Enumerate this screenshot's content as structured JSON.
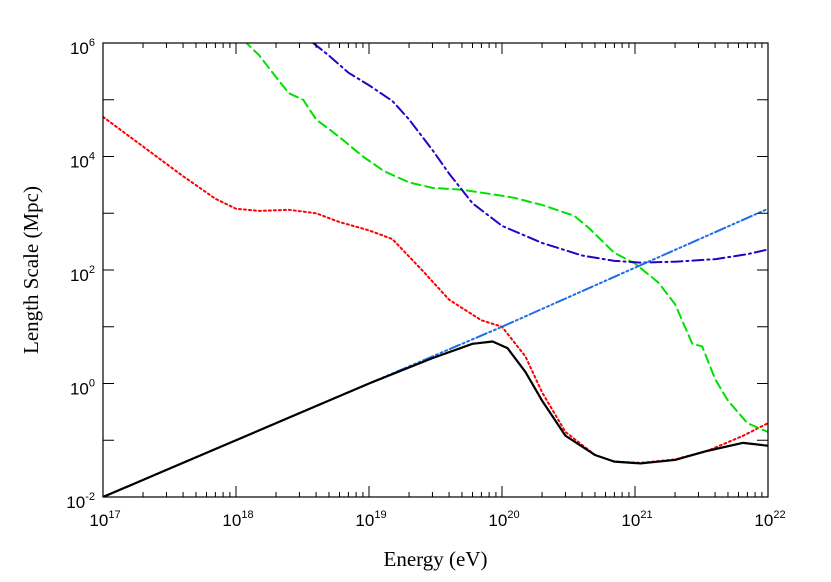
{
  "chart_data": {
    "type": "line",
    "title": "",
    "xlabel": "Energy (eV)",
    "ylabel": "Length Scale (Mpc)",
    "x_scale": "log",
    "y_scale": "log",
    "xlim": [
      1e+17,
      1e+22
    ],
    "ylim": [
      0.01,
      1000000
    ],
    "grid": false,
    "legend": "none",
    "x_ticks": [
      {
        "base": "10",
        "exp": "17",
        "value": 1e+17
      },
      {
        "base": "10",
        "exp": "18",
        "value": 1e+18
      },
      {
        "base": "10",
        "exp": "19",
        "value": 1e+19
      },
      {
        "base": "10",
        "exp": "20",
        "value": 1e+20
      },
      {
        "base": "10",
        "exp": "21",
        "value": 1e+21
      },
      {
        "base": "10",
        "exp": "22",
        "value": 1e+22
      }
    ],
    "y_ticks": [
      {
        "base": "10",
        "exp": "-2",
        "value": 0.01
      },
      {
        "base": "10",
        "exp": "0",
        "value": 1
      },
      {
        "base": "10",
        "exp": "2",
        "value": 100
      },
      {
        "base": "10",
        "exp": "4",
        "value": 10000
      },
      {
        "base": "10",
        "exp": "6",
        "value": 1000000
      }
    ],
    "series": [
      {
        "color": "#000000",
        "dash": "solid",
        "points": [
          [
            1e+17,
            0.01
          ],
          [
            3e+17,
            0.03
          ],
          [
            1e+18,
            0.1
          ],
          [
            3e+18,
            0.3
          ],
          [
            1e+19,
            1
          ],
          [
            3e+19,
            2.8
          ],
          [
            6e+19,
            5.0
          ],
          [
            8.5e+19,
            5.5
          ],
          [
            1.1e+20,
            4.2
          ],
          [
            1.5e+20,
            1.6
          ],
          [
            2e+20,
            0.5
          ],
          [
            3e+20,
            0.12
          ],
          [
            5e+20,
            0.055
          ],
          [
            7e+20,
            0.042
          ],
          [
            1.1e+21,
            0.039
          ],
          [
            2e+21,
            0.045
          ],
          [
            3.5e+21,
            0.065
          ],
          [
            6.5e+21,
            0.09
          ],
          [
            1e+22,
            0.08
          ]
        ]
      },
      {
        "color": "#ff0000",
        "dash": "dotted",
        "points": [
          [
            1e+17,
            50000
          ],
          [
            2e+17,
            15000
          ],
          [
            4e+17,
            4500
          ],
          [
            7e+17,
            1800
          ],
          [
            1e+18,
            1200
          ],
          [
            1.5e+18,
            1100
          ],
          [
            2.5e+18,
            1150
          ],
          [
            4e+18,
            1000
          ],
          [
            6e+18,
            700
          ],
          [
            1e+19,
            500
          ],
          [
            1.5e+19,
            350
          ],
          [
            2.5e+19,
            100
          ],
          [
            4e+19,
            30
          ],
          [
            7e+19,
            13
          ],
          [
            1e+20,
            10
          ],
          [
            1.5e+20,
            3
          ],
          [
            2e+20,
            0.7
          ],
          [
            3e+20,
            0.14
          ],
          [
            5e+20,
            0.055
          ],
          [
            7e+20,
            0.042
          ],
          [
            1.1e+21,
            0.04
          ],
          [
            2e+21,
            0.046
          ],
          [
            3.5e+21,
            0.065
          ],
          [
            6.5e+21,
            0.12
          ],
          [
            1e+22,
            0.2
          ]
        ]
      },
      {
        "color": "#00e000",
        "dash": "dashed",
        "points": [
          [
            1.15e+18,
            1100000
          ],
          [
            1.5e+18,
            600000
          ],
          [
            2e+18,
            250000
          ],
          [
            2.5e+18,
            130000
          ],
          [
            3.2e+18,
            100000
          ],
          [
            4e+18,
            45000
          ],
          [
            6e+18,
            22000
          ],
          [
            9e+18,
            10000
          ],
          [
            1.3e+19,
            5500
          ],
          [
            2e+19,
            3500
          ],
          [
            3e+19,
            2800
          ],
          [
            5e+19,
            2600
          ],
          [
            8e+19,
            2200
          ],
          [
            1.2e+20,
            1900
          ],
          [
            2e+20,
            1400
          ],
          [
            3.5e+20,
            900
          ],
          [
            4.5e+20,
            550
          ],
          [
            7e+20,
            200
          ],
          [
            1e+21,
            130
          ],
          [
            1.5e+21,
            60
          ],
          [
            2e+21,
            25
          ],
          [
            2.7e+21,
            5
          ],
          [
            3.2e+21,
            4.5
          ],
          [
            4e+21,
            1.2
          ],
          [
            5e+21,
            0.5
          ],
          [
            7e+21,
            0.2
          ],
          [
            1e+22,
            0.14
          ]
        ]
      },
      {
        "color": "#2a00c8",
        "dash": "dashdot",
        "points": [
          [
            3.8e+18,
            1000000
          ],
          [
            5e+18,
            600000
          ],
          [
            7e+18,
            300000
          ],
          [
            1e+19,
            180000
          ],
          [
            1.5e+19,
            95000
          ],
          [
            2e+19,
            45000
          ],
          [
            3e+19,
            13000
          ],
          [
            4e+19,
            5000
          ],
          [
            6e+19,
            1500
          ],
          [
            1e+20,
            600
          ],
          [
            2e+20,
            300
          ],
          [
            4e+20,
            180
          ],
          [
            7e+20,
            145
          ],
          [
            1.1e+21,
            135
          ],
          [
            2e+21,
            140
          ],
          [
            4e+21,
            155
          ],
          [
            7e+21,
            190
          ],
          [
            1e+22,
            230
          ]
        ]
      },
      {
        "color": "#1e6ee8",
        "dash": "dashdotdotdot",
        "points": [
          [
            1e+17,
            0.01
          ],
          [
            1e+18,
            0.1
          ],
          [
            1e+19,
            1
          ],
          [
            1e+20,
            10
          ],
          [
            1e+21,
            110
          ],
          [
            1e+22,
            1200
          ]
        ]
      }
    ]
  }
}
